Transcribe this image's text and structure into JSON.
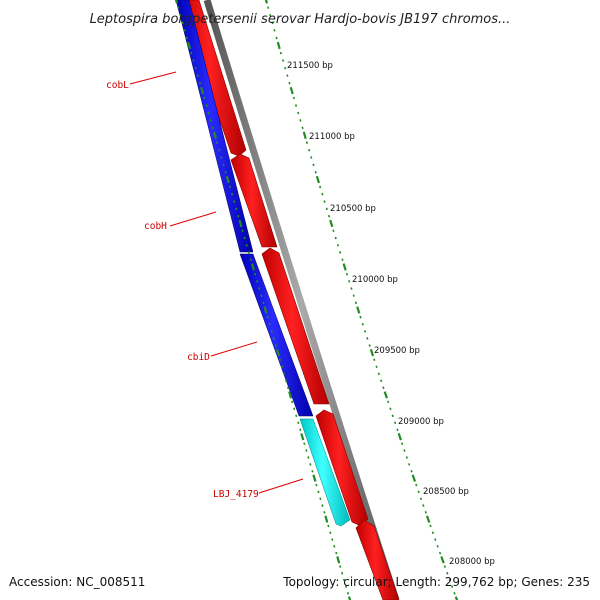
{
  "title": "Leptospira borgpetersenii serovar Hardjo-bovis JB197 chromos...",
  "footer": {
    "accession": "Accession: NC_008511",
    "topology": "Topology: circular; Length: 299,762 bp; Genes: 235"
  },
  "ticks": [
    {
      "label": "211500 bp",
      "position_bp": 211500
    },
    {
      "label": "211000 bp",
      "position_bp": 211000
    },
    {
      "label": "210500 bp",
      "position_bp": 210500
    },
    {
      "label": "210000 bp",
      "position_bp": 210000
    },
    {
      "label": "209500 bp",
      "position_bp": 209500
    },
    {
      "label": "209000 bp",
      "position_bp": 209000
    },
    {
      "label": "208500 bp",
      "position_bp": 208500
    },
    {
      "label": "208000 bp",
      "position_bp": 208000
    }
  ],
  "gene_labels": [
    {
      "name": "cobL"
    },
    {
      "name": "cobH"
    },
    {
      "name": "cbiD"
    },
    {
      "name": "LBJ_4179"
    }
  ],
  "colors": {
    "minus_strand_gene": "#0000ff",
    "highlight_gene": "#00ffff",
    "plus_strand_gene": "#ff0000",
    "backbone": "#808080",
    "tick": "#228b22",
    "label_line": "#dd0000"
  }
}
